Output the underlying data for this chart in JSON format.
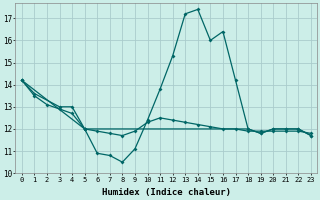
{
  "xlabel": "Humidex (Indice chaleur)",
  "bg_color": "#cceee8",
  "grid_color": "#aacccc",
  "line_color": "#006666",
  "xlim": [
    -0.5,
    23.5
  ],
  "ylim": [
    10.0,
    17.7
  ],
  "yticks": [
    10,
    11,
    12,
    13,
    14,
    15,
    16,
    17
  ],
  "xticks": [
    0,
    1,
    2,
    3,
    4,
    5,
    6,
    7,
    8,
    9,
    10,
    11,
    12,
    13,
    14,
    15,
    16,
    17,
    18,
    19,
    20,
    21,
    22,
    23
  ],
  "line1_x": [
    0,
    1,
    3,
    4,
    5,
    6,
    7,
    8,
    9,
    10,
    11,
    12,
    13,
    14,
    15,
    16,
    17,
    18,
    19,
    20,
    21,
    22,
    23
  ],
  "line1_y": [
    14.2,
    13.6,
    13.0,
    13.0,
    12.0,
    10.9,
    10.8,
    10.5,
    11.1,
    12.4,
    13.8,
    15.3,
    17.2,
    17.4,
    16.0,
    16.4,
    14.2,
    12.0,
    11.8,
    12.0,
    12.0,
    12.0,
    11.7
  ],
  "line2_x": [
    0,
    1,
    2,
    3,
    4,
    5,
    6,
    7,
    8,
    9,
    10,
    11,
    12,
    13,
    14,
    15,
    16,
    17,
    18,
    19,
    20,
    21,
    22,
    23
  ],
  "line2_y": [
    14.2,
    13.5,
    13.1,
    12.9,
    12.7,
    12.0,
    11.9,
    11.8,
    11.7,
    11.9,
    12.3,
    12.5,
    12.4,
    12.3,
    12.2,
    12.1,
    12.0,
    12.0,
    11.9,
    11.9,
    11.9,
    11.9,
    11.9,
    11.8
  ],
  "line3_x": [
    0,
    5,
    18,
    19,
    20,
    21,
    22,
    23
  ],
  "line3_y": [
    14.2,
    12.0,
    12.0,
    11.8,
    12.0,
    12.0,
    12.0,
    11.7
  ]
}
